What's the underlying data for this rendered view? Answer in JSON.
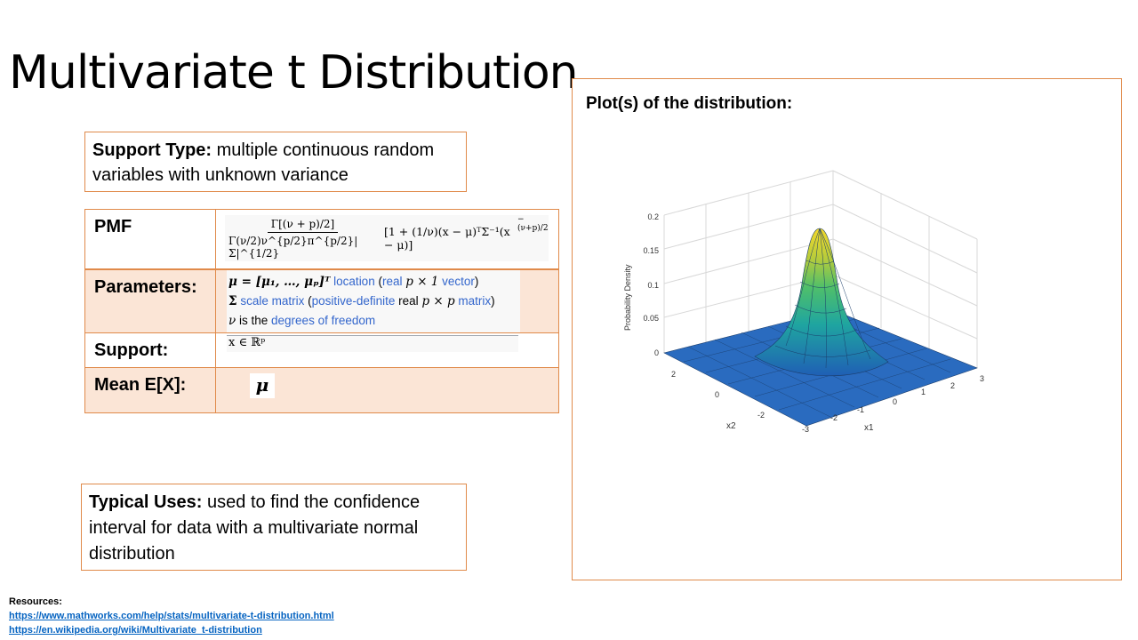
{
  "title": "Multivariate t Distribution",
  "support_type": {
    "label": "Support Type:",
    "text": " multiple continuous random variables with unknown variance"
  },
  "table": {
    "pmf_label": "PMF",
    "params_label": "Parameters:",
    "support_label": "Support:",
    "mean_label": "Mean E[X]:"
  },
  "pmf_formula": {
    "num": "Γ[(ν + p)/2]",
    "den": "Γ(ν/2)ν^{p/2}π^{p/2}|Σ|^{1/2}",
    "bracket": "[1 + (1/ν)(x − μ)ᵀΣ⁻¹(x − μ)]",
    "exponent": "−(ν+p)/2"
  },
  "parameters": {
    "line1_math": "μ = [μ₁, …, μₚ]ᵀ",
    "line1_text1": "location",
    "line1_text2": "(real",
    "line1_math2": "p × 1",
    "line1_text3": "vector)",
    "line2_math": "Σ",
    "line2_text1": "scale matrix",
    "line2_text2": "(positive-definite",
    "line2_text3": "real",
    "line2_math2": "p × p",
    "line2_text4": "matrix)",
    "line3_math": "ν",
    "line3_text1": "is the",
    "line3_text2": "degrees of freedom"
  },
  "support_formula": "x ∈ ℝᵖ",
  "mean_formula": "μ",
  "typical_uses": {
    "label": "Typical Uses:",
    "text": " used to find the confidence interval for data with a multivariate normal distribution"
  },
  "plot": {
    "title": "Plot(s) of the distribution:",
    "zlabel": "Probability Density",
    "xlabel": "x1",
    "ylabel": "x2",
    "z_ticks": [
      "0",
      "0.05",
      "0.1",
      "0.15",
      "0.2"
    ],
    "x_ticks": [
      "-3",
      "-2",
      "-1",
      "0",
      "1",
      "2",
      "3"
    ],
    "y_ticks": [
      "-3",
      "-2",
      "0",
      "2"
    ]
  },
  "resources": {
    "heading": "Resources:",
    "link1": "https://www.mathworks.com/help/stats/multivariate-t-distribution.html",
    "link2": "https://en.wikipedia.org/wiki/Multivariate_t-distribution"
  },
  "colors": {
    "border": "#e08a4a",
    "row_fill": "#fbe5d6",
    "link": "#0563c1",
    "wiki_link": "#3366cc"
  }
}
